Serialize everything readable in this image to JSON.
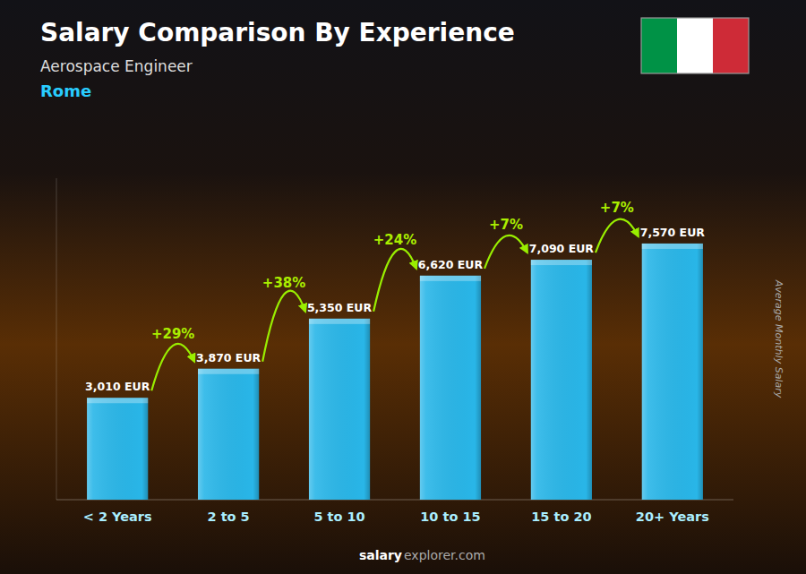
{
  "chart_data": {
    "type": "bar",
    "title": "Salary Comparison By Experience",
    "subtitle": "Aerospace Engineer",
    "city": "Rome",
    "ylabel": "Average Monthly Salary",
    "footer": [
      "salary",
      "explorer.com"
    ],
    "categories": [
      "< 2 Years",
      "2 to 5",
      "5 to 10",
      "10 to 15",
      "15 to 20",
      "20+ Years"
    ],
    "values": [
      3010,
      3870,
      5350,
      6620,
      7090,
      7570
    ],
    "value_labels": [
      "3,010 EUR",
      "3,870 EUR",
      "5,350 EUR",
      "6,620 EUR",
      "7,090 EUR",
      "7,570 EUR"
    ],
    "data_labels": true,
    "pct_changes": [
      "+29%",
      "+38%",
      "+24%",
      "+7%",
      "+7%"
    ],
    "color": "#29B6E8",
    "ylim": [
      0,
      9500
    ],
    "tick_labels": "x",
    "grid": false
  }
}
